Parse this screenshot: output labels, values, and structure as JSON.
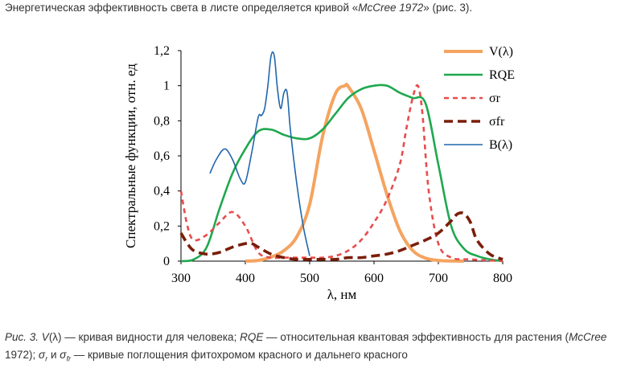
{
  "intro": {
    "before": "Энергетическая эффективность света в листе определяется кривой «",
    "source": "McCree 1972",
    "after": "» (рис. 3)."
  },
  "caption": {
    "fig": "Рис. 3.",
    "v_sym": "V",
    "v_desc": "(λ) — кривая видности для человека;",
    "rqe_sym": "RQE",
    "rqe_desc": "— относительная квантовая эффективность для растения (",
    "rqe_src": "McCree",
    "rqe_year": "1972);",
    "sigma": "σ",
    "sub_r": "r",
    "and": "и",
    "sub_fr": "fr",
    "tail": "— кривые поглощения фитохромом красного и дальнего красного"
  },
  "chart_data": {
    "type": "line",
    "title": "",
    "xlabel": "λ, нм",
    "ylabel": "Спектральные функции, отн. ед",
    "xlim": [
      300,
      800
    ],
    "ylim": [
      0,
      1.2
    ],
    "x_ticks": [
      "300",
      "400",
      "500",
      "600",
      "700",
      "800"
    ],
    "y_ticks": [
      "0",
      "0,2",
      "0,4",
      "0,6",
      "0,8",
      "1",
      "1,2"
    ],
    "legend_position": "top-right",
    "series": [
      {
        "name": "V(λ)",
        "color": "#f4a460",
        "dash": "solid",
        "width": 4,
        "x": [
          400,
          420,
          440,
          460,
          480,
          500,
          520,
          540,
          555,
          560,
          580,
          600,
          620,
          640,
          660,
          680,
          700,
          720,
          740
        ],
        "y": [
          0,
          0.004,
          0.023,
          0.06,
          0.139,
          0.323,
          0.71,
          0.954,
          1.0,
          0.995,
          0.87,
          0.631,
          0.381,
          0.175,
          0.061,
          0.017,
          0.004,
          0.001,
          0
        ]
      },
      {
        "name": "RQE",
        "color": "#1fa84f",
        "dash": "solid",
        "width": 2.6,
        "x": [
          300,
          320,
          340,
          360,
          380,
          400,
          420,
          440,
          460,
          480,
          500,
          520,
          540,
          560,
          580,
          600,
          620,
          640,
          660,
          680,
          700,
          720,
          740,
          760,
          780,
          800
        ],
        "y": [
          0,
          0.01,
          0.08,
          0.3,
          0.5,
          0.64,
          0.74,
          0.75,
          0.72,
          0.7,
          0.7,
          0.75,
          0.84,
          0.93,
          0.98,
          1.0,
          1.0,
          0.96,
          0.93,
          0.9,
          0.55,
          0.2,
          0.07,
          0.03,
          0.01,
          0
        ]
      },
      {
        "name": "σr",
        "color": "#e74c4c",
        "dash": "6,5",
        "width": 2.6,
        "x": [
          300,
          310,
          320,
          340,
          360,
          380,
          400,
          420,
          440,
          460,
          480,
          500,
          520,
          540,
          560,
          580,
          600,
          620,
          640,
          650,
          660,
          668,
          675,
          685,
          700,
          720,
          750,
          800
        ],
        "y": [
          0.4,
          0.2,
          0.12,
          0.15,
          0.22,
          0.28,
          0.2,
          0.05,
          0.02,
          0.02,
          0.02,
          0.02,
          0.02,
          0.03,
          0.06,
          0.12,
          0.22,
          0.35,
          0.55,
          0.75,
          0.93,
          1.0,
          0.85,
          0.4,
          0.1,
          0.02,
          0.01,
          0
        ]
      },
      {
        "name": "σfr",
        "color": "#7a1e0a",
        "dash": "11,6",
        "width": 3.6,
        "x": [
          300,
          310,
          320,
          340,
          360,
          380,
          400,
          410,
          420,
          440,
          460,
          480,
          500,
          520,
          540,
          560,
          580,
          600,
          620,
          640,
          660,
          680,
          700,
          720,
          730,
          740,
          750,
          760,
          780,
          800
        ],
        "y": [
          0.16,
          0.1,
          0.06,
          0.04,
          0.05,
          0.08,
          0.1,
          0.1,
          0.08,
          0.04,
          0.02,
          0.01,
          0.01,
          0.01,
          0.01,
          0.02,
          0.02,
          0.03,
          0.04,
          0.06,
          0.09,
          0.12,
          0.16,
          0.23,
          0.27,
          0.27,
          0.22,
          0.12,
          0.04,
          0.01
        ]
      },
      {
        "name": "B(λ)",
        "color": "#2166ac",
        "dash": "solid",
        "width": 1.6,
        "x": [
          345,
          355,
          368,
          380,
          392,
          400,
          410,
          420,
          425,
          430,
          435,
          440,
          445,
          450,
          455,
          460,
          465,
          470,
          480,
          490,
          500
        ],
        "y": [
          0.5,
          0.58,
          0.64,
          0.58,
          0.47,
          0.45,
          0.62,
          0.82,
          0.83,
          0.87,
          1.0,
          1.17,
          1.17,
          0.98,
          0.87,
          0.96,
          0.96,
          0.75,
          0.44,
          0.2,
          0.03
        ]
      }
    ]
  }
}
